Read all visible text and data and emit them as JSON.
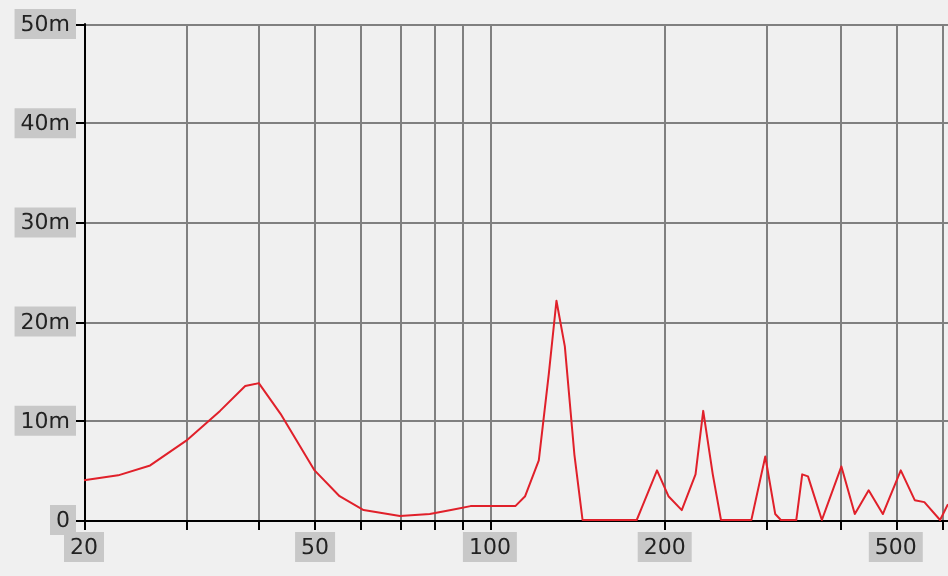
{
  "chart_data": {
    "type": "line",
    "log": "x",
    "grid": true,
    "marker": "none",
    "line_style": "solid",
    "x": [
      20,
      22.9,
      26,
      30,
      34.3,
      37.9,
      40,
      43.6,
      49.9,
      55.1,
      60.6,
      70,
      78.8,
      85.7,
      92.6,
      110.6,
      115,
      121.4,
      126.3,
      130.2,
      134.6,
      139.8,
      144.4,
      179,
      194,
      203,
      214,
      226,
      233,
      242,
      250,
      282,
      298,
      310,
      317,
      337,
      345,
      353,
      373,
      403,
      425,
      449,
      475,
      510,
      539,
      560,
      596,
      615
    ],
    "series": [
      {
        "color": "#e0202a",
        "values": [
          4,
          4.5,
          5.5,
          8,
          11,
          13.5,
          13.8,
          10.7,
          5,
          2.4,
          1,
          0.4,
          0.6,
          1,
          1.4,
          1.4,
          2.4,
          6,
          14.7,
          22.1,
          17.5,
          6.6,
          0,
          0,
          5,
          2.4,
          1,
          4.6,
          11,
          4.6,
          0,
          0,
          6.4,
          0.6,
          0,
          0,
          4.6,
          4.4,
          0,
          5.4,
          0.6,
          3,
          0.6,
          5,
          2,
          1.8,
          0,
          1.6
        ]
      }
    ],
    "xlim": [
      20,
      615
    ],
    "xticks": [
      20,
      {
        "value": 30,
        "label": null
      },
      {
        "value": 40,
        "label": null
      },
      50,
      {
        "value": 60,
        "label": null
      },
      {
        "value": 70,
        "label": null
      },
      {
        "value": 80,
        "label": null
      },
      {
        "value": 90,
        "label": null
      },
      100,
      200,
      {
        "value": 300,
        "label": null
      },
      {
        "value": 400,
        "label": null
      },
      500,
      {
        "value": 600,
        "label": null
      }
    ],
    "ylim": [
      0,
      50
    ],
    "yticks": [
      0,
      {
        "value": 10,
        "label": "10m"
      },
      {
        "value": 20,
        "label": "20m"
      },
      {
        "value": 30,
        "label": "30m"
      },
      {
        "value": 40,
        "label": "40m"
      },
      {
        "value": 50,
        "label": "50m"
      }
    ]
  }
}
